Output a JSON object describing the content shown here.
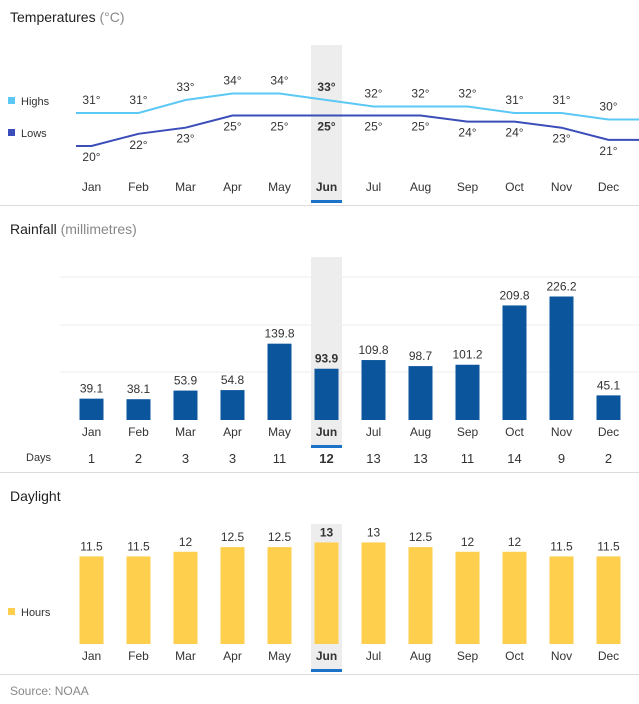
{
  "selected_month_index": 5,
  "colors": {
    "highs": "#5bc8f5",
    "lows": "#3b4db8",
    "rain": "#0a559c",
    "daylight": "#fecf4c",
    "highlight": "#ededed",
    "underline": "#1a73c8",
    "grid": "#eeeeee"
  },
  "temperature": {
    "title": "Temperatures",
    "unit": "(°C)",
    "legend_highs": "Highs",
    "legend_lows": "Lows"
  },
  "rainfall": {
    "title": "Rainfall",
    "unit": "(millimetres)",
    "days_label": "Days"
  },
  "daylight": {
    "title": "Daylight",
    "legend_hours": "Hours"
  },
  "source": "Source: NOAA",
  "chart_data": [
    {
      "type": "line",
      "title": "Temperatures (°C)",
      "categories": [
        "Jan",
        "Feb",
        "Mar",
        "Apr",
        "May",
        "Jun",
        "Jul",
        "Aug",
        "Sep",
        "Oct",
        "Nov",
        "Dec"
      ],
      "series": [
        {
          "name": "Highs",
          "values": [
            31,
            31,
            33,
            34,
            34,
            33,
            32,
            32,
            32,
            31,
            31,
            30
          ],
          "labels": [
            "31°",
            "31°",
            "33°",
            "34°",
            "34°",
            "33°",
            "32°",
            "32°",
            "32°",
            "31°",
            "31°",
            "30°"
          ]
        },
        {
          "name": "Lows",
          "values": [
            20,
            22,
            23,
            25,
            25,
            25,
            25,
            25,
            24,
            24,
            23,
            21
          ],
          "labels": [
            "20°",
            "22°",
            "23°",
            "25°",
            "25°",
            "25°",
            "25°",
            "25°",
            "24°",
            "24°",
            "23°",
            "21°"
          ]
        }
      ]
    },
    {
      "type": "bar",
      "title": "Rainfall (millimetres)",
      "categories": [
        "Jan",
        "Feb",
        "Mar",
        "Apr",
        "May",
        "Jun",
        "Jul",
        "Aug",
        "Sep",
        "Oct",
        "Nov",
        "Dec"
      ],
      "values": [
        39.1,
        38.1,
        53.9,
        54.8,
        139.8,
        93.9,
        109.8,
        98.7,
        101.2,
        209.8,
        226.2,
        45.1
      ],
      "labels": [
        "39.1",
        "38.1",
        "53.9",
        "54.8",
        "139.8",
        "93.9",
        "109.8",
        "98.7",
        "101.2",
        "209.8",
        "226.2",
        "45.1"
      ],
      "days": [
        "1",
        "2",
        "3",
        "3",
        "11",
        "12",
        "13",
        "13",
        "11",
        "14",
        "9",
        "2"
      ]
    },
    {
      "type": "bar",
      "title": "Daylight",
      "categories": [
        "Jan",
        "Feb",
        "Mar",
        "Apr",
        "May",
        "Jun",
        "Jul",
        "Aug",
        "Sep",
        "Oct",
        "Nov",
        "Dec"
      ],
      "values": [
        11.5,
        11.5,
        12,
        12.5,
        12.5,
        13,
        13,
        12.5,
        12,
        12,
        11.5,
        11.5
      ],
      "labels": [
        "11.5",
        "11.5",
        "12",
        "12.5",
        "12.5",
        "13",
        "13",
        "12.5",
        "12",
        "12",
        "11.5",
        "11.5"
      ]
    }
  ]
}
